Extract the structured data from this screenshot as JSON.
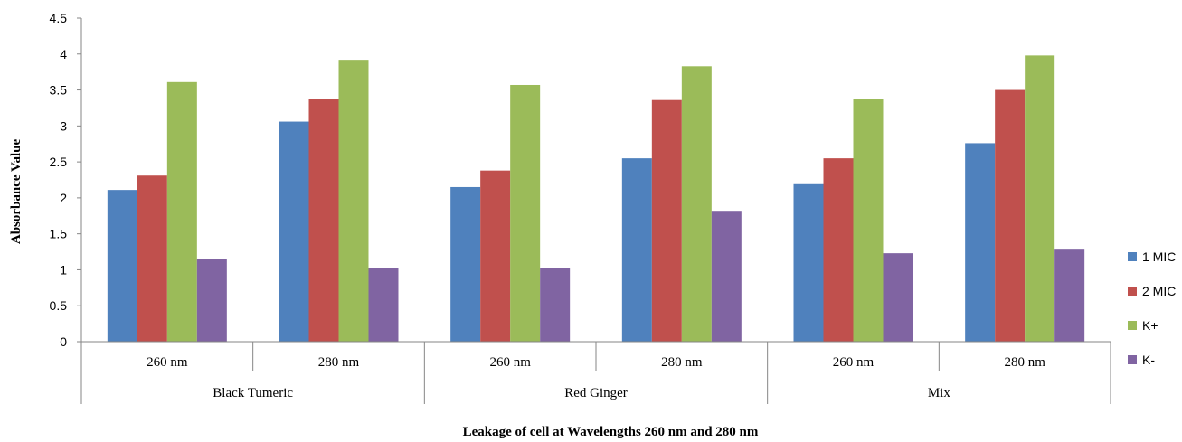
{
  "chart_data": {
    "type": "bar",
    "title": "",
    "xlabel": "Leakage of cell at Wavelengths 260 nm and 280 nm",
    "ylabel": "Absorbance Value",
    "ylim": [
      0,
      4.5
    ],
    "yticks": [
      "0",
      "0.5",
      "1",
      "1.5",
      "2",
      "2.5",
      "3",
      "3.5",
      "4",
      "4.5"
    ],
    "groups": [
      {
        "name": "Black Tumeric",
        "subcategories": [
          "260 nm",
          "280 nm"
        ]
      },
      {
        "name": "Red Ginger",
        "subcategories": [
          "260 nm",
          "280 nm"
        ]
      },
      {
        "name": "Mix",
        "subcategories": [
          "260 nm",
          "280 nm"
        ]
      }
    ],
    "series": [
      {
        "name": "1 MIC",
        "color": "#4f81bd",
        "values": [
          2.11,
          3.06,
          2.15,
          2.55,
          2.19,
          2.76
        ]
      },
      {
        "name": "2 MIC",
        "color": "#c0504d",
        "values": [
          2.31,
          3.38,
          2.38,
          3.36,
          2.55,
          3.5
        ]
      },
      {
        "name": "K+",
        "color": "#9bbb59",
        "values": [
          3.61,
          3.92,
          3.57,
          3.83,
          3.37,
          3.98
        ]
      },
      {
        "name": "K-",
        "color": "#8064a2",
        "values": [
          1.15,
          1.02,
          1.02,
          1.82,
          1.23,
          1.28
        ]
      }
    ],
    "legend_position": "right",
    "grid": false
  }
}
